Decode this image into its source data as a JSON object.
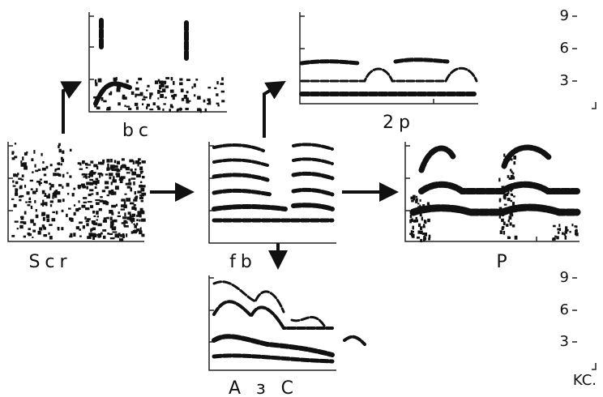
{
  "panels": [
    {
      "label": "bc"
    },
    {
      "label": "2p"
    },
    {
      "label": "Scr"
    },
    {
      "label": "fb"
    },
    {
      "label": "P"
    },
    {
      "label": "A з C"
    }
  ],
  "scales": [
    {
      "ticks": [
        "9",
        "6",
        "3"
      ]
    },
    {
      "ticks": [
        "9",
        "6",
        "3"
      ]
    }
  ],
  "unit": "KC."
}
